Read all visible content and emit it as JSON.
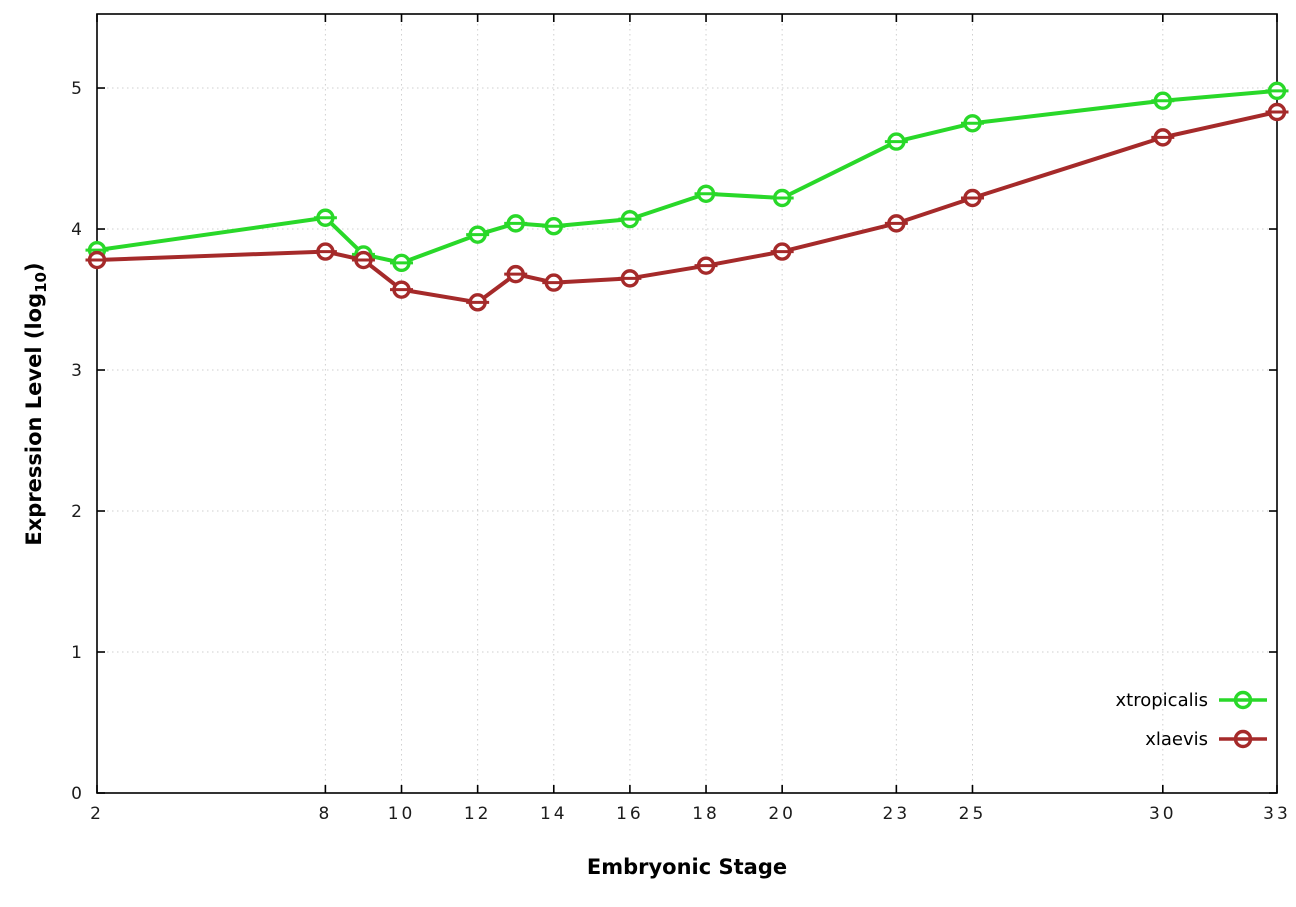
{
  "chart_data": {
    "type": "line",
    "title": "",
    "xlabel": "Embryonic Stage",
    "ylabel": "Expression Level (log10)",
    "ylabel_parts": {
      "prefix": "Expression Level (log",
      "sub": "10",
      "suffix": ")"
    },
    "xlim": [
      2,
      33
    ],
    "ylim": [
      0,
      5.525
    ],
    "x_ticks": [
      2,
      8,
      10,
      12,
      14,
      16,
      18,
      20,
      23,
      25,
      30,
      33
    ],
    "y_ticks": [
      0,
      1,
      2,
      3,
      4,
      5
    ],
    "grid": true,
    "legend_position": "bottom-right-inside",
    "marker": "open-circle-with-horizontal-errorbar",
    "x": [
      2,
      8,
      9,
      10,
      12,
      13,
      14,
      16,
      18,
      20,
      23,
      25,
      30,
      33
    ],
    "series": [
      {
        "name": "xtropicalis",
        "color": "#29d829",
        "values": [
          3.85,
          4.08,
          3.82,
          3.76,
          3.96,
          4.04,
          4.02,
          4.07,
          4.25,
          4.22,
          4.62,
          4.75,
          4.91,
          4.98
        ]
      },
      {
        "name": "xlaevis",
        "color": "#a52a2a",
        "values": [
          3.78,
          3.84,
          3.78,
          3.57,
          3.48,
          3.68,
          3.62,
          3.65,
          3.74,
          3.84,
          4.04,
          4.22,
          4.65,
          4.83
        ]
      }
    ]
  }
}
